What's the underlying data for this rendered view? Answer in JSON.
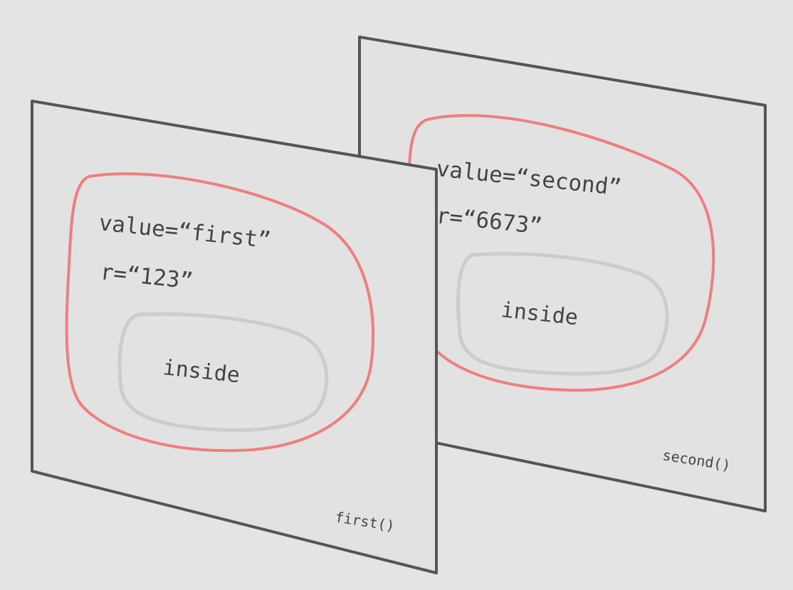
{
  "frames": [
    {
      "id": "second",
      "value_line": "value=“second”",
      "r_line": "r=“6673”",
      "inner_label": "inside",
      "caption": "second()"
    },
    {
      "id": "first",
      "value_line": "value=“first”",
      "r_line": "r=“123”",
      "inner_label": "inside",
      "caption": "first()"
    }
  ],
  "colors": {
    "background": "#e4e4e4",
    "panel": "#e2e2e2",
    "frame_border": "#555555",
    "scope_outline": "#f07e7e",
    "inner_outline": "#cccccc",
    "text": "#444444"
  }
}
